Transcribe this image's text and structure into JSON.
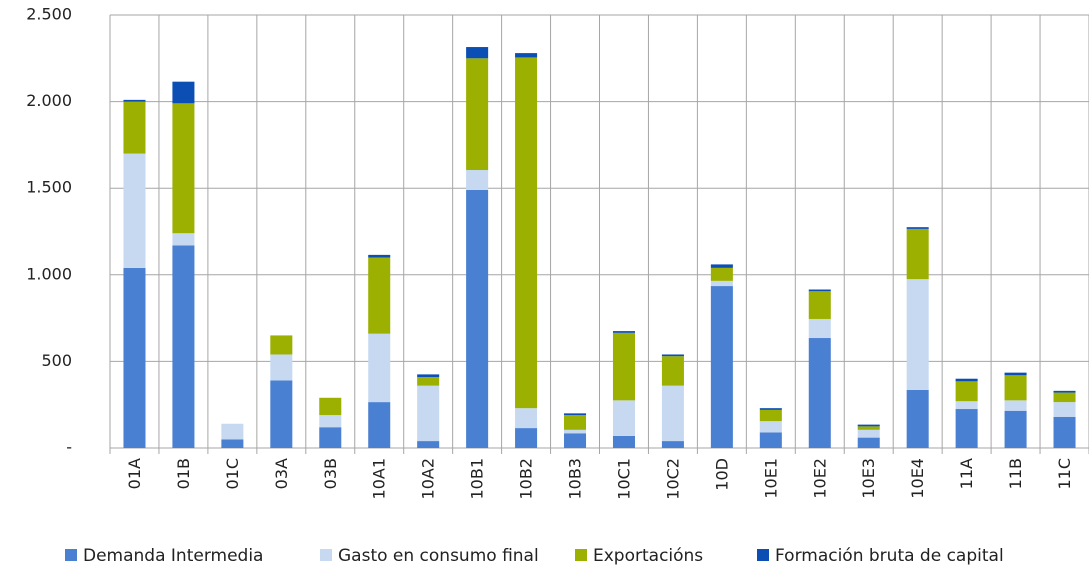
{
  "chart_data": {
    "type": "stacked_bar",
    "categories": [
      "01A",
      "01B",
      "01C",
      "03A",
      "03B",
      "10A1",
      "10A2",
      "10B1",
      "10B2",
      "10B3",
      "10C1",
      "10C2",
      "10D",
      "10E1",
      "10E2",
      "10E3",
      "10E4",
      "11A",
      "11B",
      "11C"
    ],
    "series": [
      {
        "name": "Demanda Intermedia",
        "color": "#4a80d2",
        "values": [
          1040,
          1170,
          50,
          390,
          120,
          265,
          40,
          1490,
          115,
          85,
          70,
          40,
          935,
          90,
          635,
          60,
          335,
          225,
          215,
          180
        ]
      },
      {
        "name": "Gasto en consumo final",
        "color": "#c6d9f1",
        "values": [
          660,
          70,
          90,
          150,
          70,
          395,
          320,
          115,
          115,
          20,
          205,
          320,
          30,
          65,
          110,
          45,
          640,
          45,
          60,
          85
        ]
      },
      {
        "name": "Exportacións",
        "color": "#9bb000",
        "values": [
          300,
          750,
          0,
          110,
          100,
          440,
          50,
          645,
          2025,
          85,
          390,
          170,
          75,
          65,
          160,
          20,
          290,
          115,
          145,
          55
        ]
      },
      {
        "name": "Formación bruta de capital",
        "color": "#0b4fb5",
        "values": [
          10,
          125,
          0,
          0,
          0,
          15,
          15,
          65,
          25,
          10,
          10,
          10,
          20,
          10,
          10,
          10,
          10,
          15,
          15,
          10
        ]
      }
    ],
    "ylim": [
      0,
      2500
    ],
    "yticks": [
      {
        "value": 0,
        "label": "-"
      },
      500,
      {
        "value": 1000,
        "label": "1.000"
      },
      {
        "value": 1500,
        "label": "1.500"
      },
      {
        "value": 2000,
        "label": "2.000"
      },
      {
        "value": 2500,
        "label": "2.500"
      }
    ],
    "grid": true,
    "legend": "bottom"
  }
}
